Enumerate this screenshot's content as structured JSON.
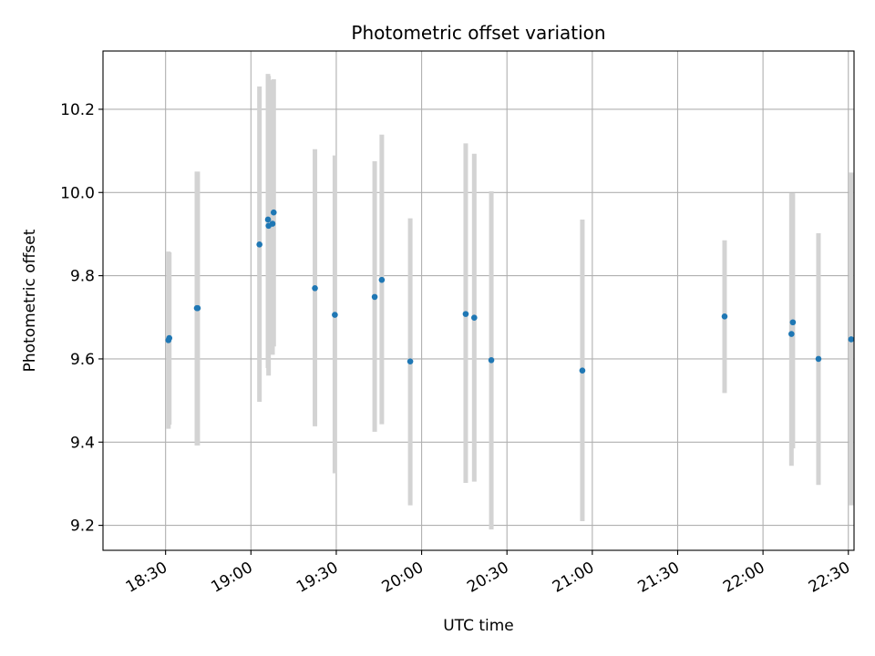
{
  "chart_data": {
    "type": "scatter",
    "title": "Photometric offset variation",
    "xlabel": "UTC time",
    "ylabel": "Photometric offset",
    "xlim_minutes": [
      1088,
      1352
    ],
    "ylim": [
      9.14,
      10.34
    ],
    "x_ticks": [
      {
        "minutes": 1110,
        "label": "18:30"
      },
      {
        "minutes": 1140,
        "label": "19:00"
      },
      {
        "minutes": 1170,
        "label": "19:30"
      },
      {
        "minutes": 1200,
        "label": "20:00"
      },
      {
        "minutes": 1230,
        "label": "20:30"
      },
      {
        "minutes": 1260,
        "label": "21:00"
      },
      {
        "minutes": 1290,
        "label": "21:30"
      },
      {
        "minutes": 1320,
        "label": "22:00"
      },
      {
        "minutes": 1350,
        "label": "22:30"
      }
    ],
    "y_ticks": [
      9.2,
      9.4,
      9.6,
      9.8,
      10.0,
      10.2
    ],
    "grid": true,
    "point_color": "#1f77b4",
    "errorbar_color": "#d3d3d3",
    "series": [
      {
        "name": "offset",
        "points": [
          {
            "t": 1111.0,
            "y": 9.645,
            "lo": 9.432,
            "hi": 9.858
          },
          {
            "t": 1111.3,
            "y": 9.65,
            "lo": 9.442,
            "hi": 9.856
          },
          {
            "t": 1121.0,
            "y": 9.722,
            "lo": 9.392,
            "hi": 10.05
          },
          {
            "t": 1121.3,
            "y": 9.722,
            "lo": 9.392,
            "hi": 10.05
          },
          {
            "t": 1143.0,
            "y": 9.875,
            "lo": 9.497,
            "hi": 10.255
          },
          {
            "t": 1146.0,
            "y": 9.935,
            "lo": 9.578,
            "hi": 10.285
          },
          {
            "t": 1146.2,
            "y": 9.92,
            "lo": 9.56,
            "hi": 10.28
          },
          {
            "t": 1148.0,
            "y": 9.952,
            "lo": 9.63,
            "hi": 10.272
          },
          {
            "t": 1147.6,
            "y": 9.925,
            "lo": 9.61,
            "hi": 10.27
          },
          {
            "t": 1162.5,
            "y": 9.77,
            "lo": 9.438,
            "hi": 10.104
          },
          {
            "t": 1169.5,
            "y": 9.706,
            "lo": 9.325,
            "hi": 10.089
          },
          {
            "t": 1183.5,
            "y": 9.749,
            "lo": 9.425,
            "hi": 10.075
          },
          {
            "t": 1186.0,
            "y": 9.79,
            "lo": 9.443,
            "hi": 10.139
          },
          {
            "t": 1196.0,
            "y": 9.594,
            "lo": 9.248,
            "hi": 9.938
          },
          {
            "t": 1215.5,
            "y": 9.708,
            "lo": 9.302,
            "hi": 10.118
          },
          {
            "t": 1218.5,
            "y": 9.699,
            "lo": 9.305,
            "hi": 10.093
          },
          {
            "t": 1224.5,
            "y": 9.597,
            "lo": 9.19,
            "hi": 10.003
          },
          {
            "t": 1256.5,
            "y": 9.572,
            "lo": 9.21,
            "hi": 9.935
          },
          {
            "t": 1306.5,
            "y": 9.702,
            "lo": 9.518,
            "hi": 9.885
          },
          {
            "t": 1330.0,
            "y": 9.66,
            "lo": 9.343,
            "hi": 9.998
          },
          {
            "t": 1330.5,
            "y": 9.688,
            "lo": 9.385,
            "hi": 9.998
          },
          {
            "t": 1339.5,
            "y": 9.6,
            "lo": 9.297,
            "hi": 9.902
          },
          {
            "t": 1351.0,
            "y": 9.647,
            "lo": 9.248,
            "hi": 10.048
          }
        ]
      }
    ]
  }
}
